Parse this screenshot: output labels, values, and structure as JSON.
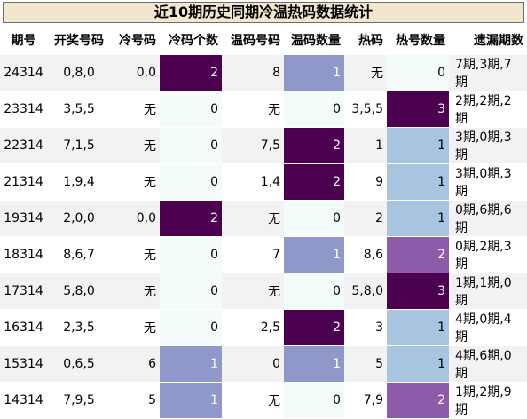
{
  "title": "近10期历史同期冷温热码数据统计",
  "headers": [
    "期号",
    "开奖号码",
    "冷号码",
    "冷码个数",
    "温码号码",
    "温码数量",
    "热码",
    "热号数量",
    "遗漏期数"
  ],
  "rows": [
    {
      "issue": "24314",
      "draw": "0,8,0",
      "cold": "0,0",
      "cold_count": "2",
      "warm": "8",
      "warm_count": "1",
      "hot": "无",
      "hot_count": "0",
      "missing": "7期,3期,7期",
      "cold_level": "dark",
      "warm_level": "lav",
      "hot_level": "none"
    },
    {
      "issue": "23314",
      "draw": "3,5,5",
      "cold": "无",
      "cold_count": "0",
      "warm": "无",
      "warm_count": "0",
      "hot": "3,5,5",
      "hot_count": "3",
      "missing": "2期,2期,2期",
      "cold_level": "none",
      "warm_level": "none",
      "hot_level": "dark"
    },
    {
      "issue": "22314",
      "draw": "7,1,5",
      "cold": "无",
      "cold_count": "0",
      "warm": "7,5",
      "warm_count": "2",
      "hot": "1",
      "hot_count": "1",
      "missing": "3期,0期,3期",
      "cold_level": "none",
      "warm_level": "dark",
      "hot_level": "blue"
    },
    {
      "issue": "21314",
      "draw": "1,9,4",
      "cold": "无",
      "cold_count": "0",
      "warm": "1,4",
      "warm_count": "2",
      "hot": "9",
      "hot_count": "1",
      "missing": "3期,0期,3期",
      "cold_level": "none",
      "warm_level": "dark",
      "hot_level": "blue"
    },
    {
      "issue": "19314",
      "draw": "2,0,0",
      "cold": "0,0",
      "cold_count": "2",
      "warm": "无",
      "warm_count": "0",
      "hot": "2",
      "hot_count": "1",
      "missing": "0期,6期,6期",
      "cold_level": "dark",
      "warm_level": "none",
      "hot_level": "blue"
    },
    {
      "issue": "18314",
      "draw": "8,6,7",
      "cold": "无",
      "cold_count": "0",
      "warm": "7",
      "warm_count": "1",
      "hot": "8,6",
      "hot_count": "2",
      "missing": "0期,2期,3期",
      "cold_level": "none",
      "warm_level": "lav",
      "hot_level": "mid"
    },
    {
      "issue": "17314",
      "draw": "5,8,0",
      "cold": "无",
      "cold_count": "0",
      "warm": "无",
      "warm_count": "0",
      "hot": "5,8,0",
      "hot_count": "3",
      "missing": "1期,1期,0期",
      "cold_level": "none",
      "warm_level": "none",
      "hot_level": "dark"
    },
    {
      "issue": "16314",
      "draw": "2,3,5",
      "cold": "无",
      "cold_count": "0",
      "warm": "2,5",
      "warm_count": "2",
      "hot": "3",
      "hot_count": "1",
      "missing": "4期,0期,4期",
      "cold_level": "none",
      "warm_level": "dark",
      "hot_level": "blue"
    },
    {
      "issue": "15314",
      "draw": "0,6,5",
      "cold": "6",
      "cold_count": "1",
      "warm": "0",
      "warm_count": "1",
      "hot": "5",
      "hot_count": "1",
      "missing": "4期,6期,0期",
      "cold_level": "lav",
      "warm_level": "lav",
      "hot_level": "blue"
    },
    {
      "issue": "14314",
      "draw": "7,9,5",
      "cold": "5",
      "cold_count": "1",
      "warm": "无",
      "warm_count": "0",
      "hot": "7,9",
      "hot_count": "2",
      "missing": "1期,2期,9期",
      "cold_level": "lav",
      "warm_level": "none",
      "hot_level": "mid"
    }
  ],
  "colors": {
    "dark": "#4b0050",
    "mid": "#8e5aaa",
    "lav": "#8f98c8",
    "blue": "#a9c4e0",
    "title_bg": "#f2e6cf"
  }
}
